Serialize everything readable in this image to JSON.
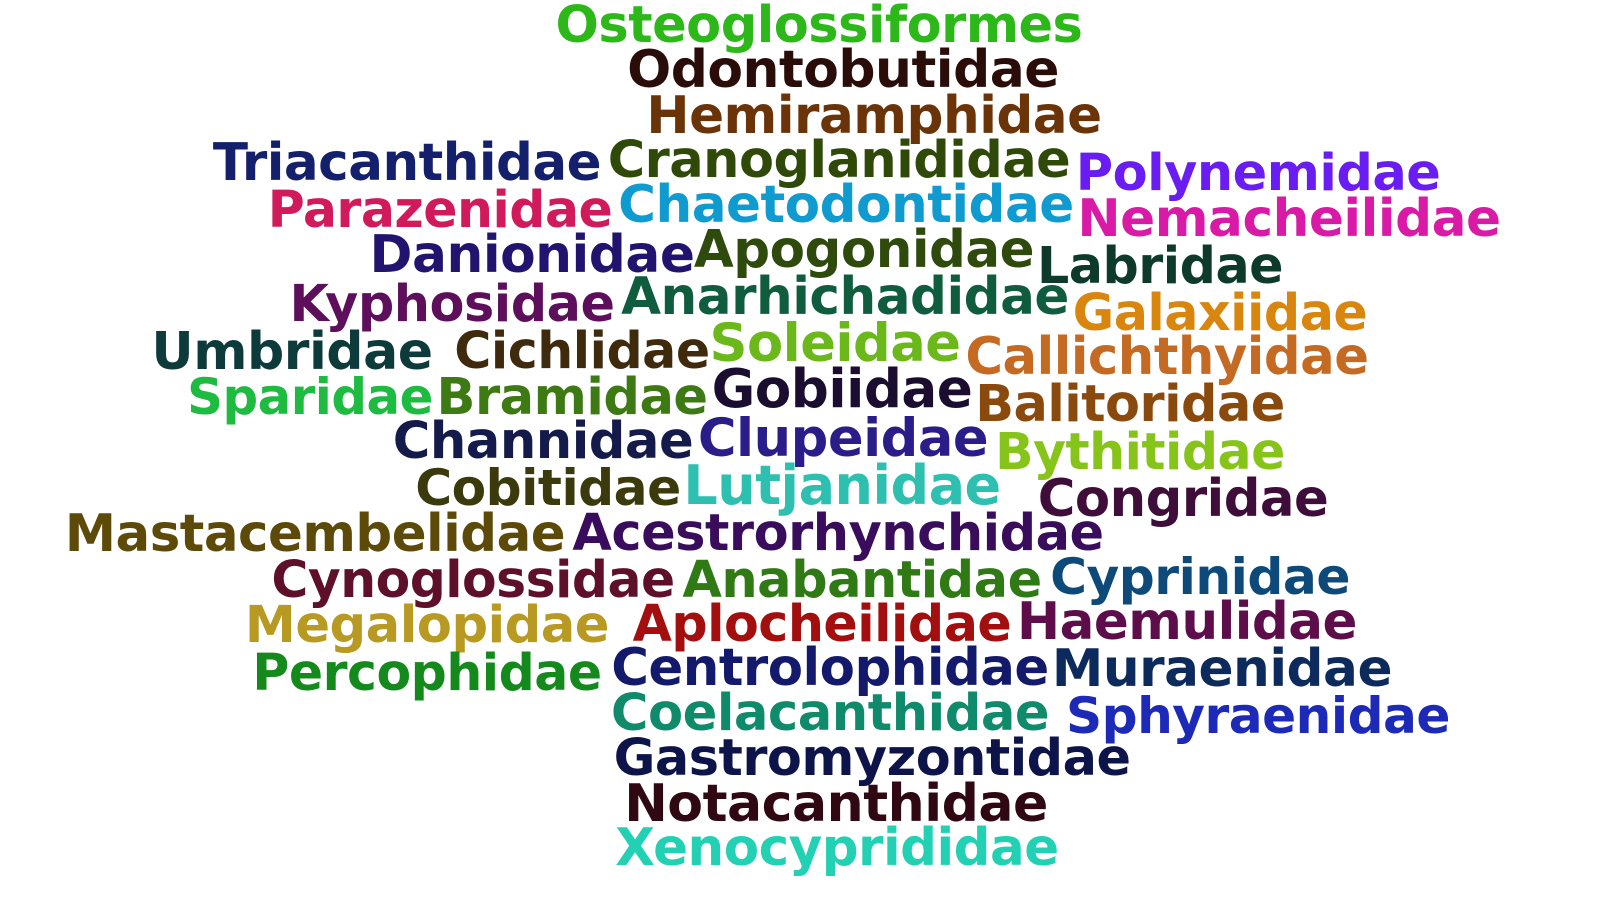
{
  "words": [
    {
      "text": "Osteoglossiformes",
      "color": "#2db81a"
    },
    {
      "text": "Odontobutidae",
      "color": "#2a0d08"
    },
    {
      "text": "Hemiramphidae",
      "color": "#6b3408"
    },
    {
      "text": "Triacanthidae",
      "color": "#14206b"
    },
    {
      "text": "Cranoglanididae",
      "color": "#2f4a08"
    },
    {
      "text": "Polynemidae",
      "color": "#6a1df2"
    },
    {
      "text": "Parazenidae",
      "color": "#d11a5c"
    },
    {
      "text": "Chaetodontidae",
      "color": "#0f9bcf"
    },
    {
      "text": "Nemacheilidae",
      "color": "#d91aa6"
    },
    {
      "text": "Danionidae",
      "color": "#22146e"
    },
    {
      "text": "Apogonidae",
      "color": "#2f4a0d"
    },
    {
      "text": "Labridae",
      "color": "#0d3a2a"
    },
    {
      "text": "Kyphosidae",
      "color": "#5e0f5c"
    },
    {
      "text": "Anarhichadidae",
      "color": "#0f5c3f"
    },
    {
      "text": "Galaxiidae",
      "color": "#d9860f"
    },
    {
      "text": "Umbridae",
      "color": "#0d3a3a"
    },
    {
      "text": "Cichlidae",
      "color": "#3f2a0d"
    },
    {
      "text": "Soleidae",
      "color": "#6ab81a"
    },
    {
      "text": "Callichthyidae",
      "color": "#c46a22"
    },
    {
      "text": "Sparidae",
      "color": "#1dbb3f"
    },
    {
      "text": "Bramidae",
      "color": "#3d7a14"
    },
    {
      "text": "Gobiidae",
      "color": "#1a0d2f"
    },
    {
      "text": "Balitoridae",
      "color": "#8a4a0d"
    },
    {
      "text": "Channidae",
      "color": "#141a4a"
    },
    {
      "text": "Clupeidae",
      "color": "#2a1d8a"
    },
    {
      "text": "Bythitidae",
      "color": "#86c41a"
    },
    {
      "text": "Cobitidae",
      "color": "#3a3a0d"
    },
    {
      "text": "Lutjanidae",
      "color": "#2dbfb0"
    },
    {
      "text": "Congridae",
      "color": "#3f0d3a"
    },
    {
      "text": "Mastacembelidae",
      "color": "#5e4a08"
    },
    {
      "text": "Acestrorhynchidae",
      "color": "#3a0d5c"
    },
    {
      "text": "Cynoglossidae",
      "color": "#5e0f2a"
    },
    {
      "text": "Anabantidae",
      "color": "#2f7a14"
    },
    {
      "text": "Cyprinidae",
      "color": "#0d4a7a"
    },
    {
      "text": "Megalopidae",
      "color": "#b89a22"
    },
    {
      "text": "Aplocheilidae",
      "color": "#a30f0f"
    },
    {
      "text": "Haemulidae",
      "color": "#5c0d4a"
    },
    {
      "text": "Percophidae",
      "color": "#148a1d"
    },
    {
      "text": "Centrolophidae",
      "color": "#141a6b"
    },
    {
      "text": "Muraenidae",
      "color": "#0d2a5c"
    },
    {
      "text": "Coelacanthidae",
      "color": "#0f8a6a"
    },
    {
      "text": "Sphyraenidae",
      "color": "#1d2ab8"
    },
    {
      "text": "Gastromyzontidae",
      "color": "#0d144a"
    },
    {
      "text": "Notacanthidae",
      "color": "#2f0814"
    },
    {
      "text": "Xenocyprididae",
      "color": "#22d1b3"
    }
  ]
}
